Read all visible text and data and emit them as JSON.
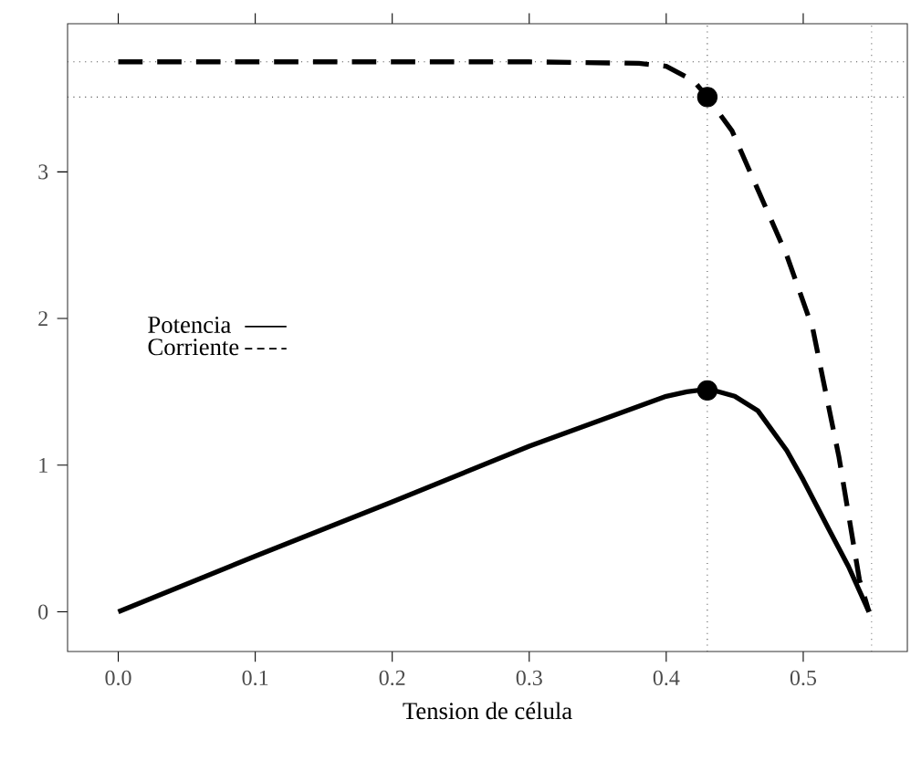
{
  "chart_data": {
    "type": "line",
    "xlabel": "Tension de célula",
    "xlim": [
      -0.037,
      0.576
    ],
    "ylim": [
      -0.27,
      4.01
    ],
    "xticks": [
      {
        "value": 0,
        "label": "0.0"
      },
      0.1,
      0.2,
      0.3,
      0.4,
      0.5
    ],
    "yticks": [
      0,
      1,
      2,
      3
    ],
    "grid": false,
    "legend": "left",
    "ref_lines": [
      {
        "axis": "x",
        "value": 0.43,
        "line_style": "dotted"
      },
      {
        "axis": "x",
        "value": 0.55,
        "line_style": "dotted"
      },
      {
        "axis": "y",
        "value": 3.75,
        "line_style": "dotted"
      },
      {
        "axis": "y",
        "value": 3.51,
        "line_style": "dotted"
      }
    ],
    "series": [
      {
        "name": "Potencia",
        "color": "#000000",
        "line_style": "solid",
        "x": [
          0,
          0.1,
          0.2,
          0.3,
          0.4,
          0.415,
          0.431,
          0.45,
          0.467,
          0.488,
          0.5,
          0.51,
          0.52,
          0.533,
          0.548
        ],
        "values": [
          0,
          0.38,
          0.75,
          1.13,
          1.47,
          1.5,
          1.52,
          1.47,
          1.37,
          1.1,
          0.9,
          0.72,
          0.54,
          0.31,
          0
        ]
      },
      {
        "name": "Corriente",
        "color": "#000000",
        "line_style": "dashed",
        "x": [
          0,
          0.1,
          0.2,
          0.3,
          0.38,
          0.4,
          0.42,
          0.43,
          0.448,
          0.488,
          0.507,
          0.515,
          0.526,
          0.541,
          0.548
        ],
        "values": [
          3.75,
          3.75,
          3.75,
          3.75,
          3.74,
          3.72,
          3.62,
          3.51,
          3.28,
          2.43,
          1.93,
          1.56,
          1.06,
          0.22,
          0
        ]
      },
      {
        "type": "scatter",
        "color": "#000000",
        "marker": "circle",
        "x": [
          0.43,
          0.43
        ],
        "values": [
          3.51,
          1.51
        ]
      }
    ]
  }
}
